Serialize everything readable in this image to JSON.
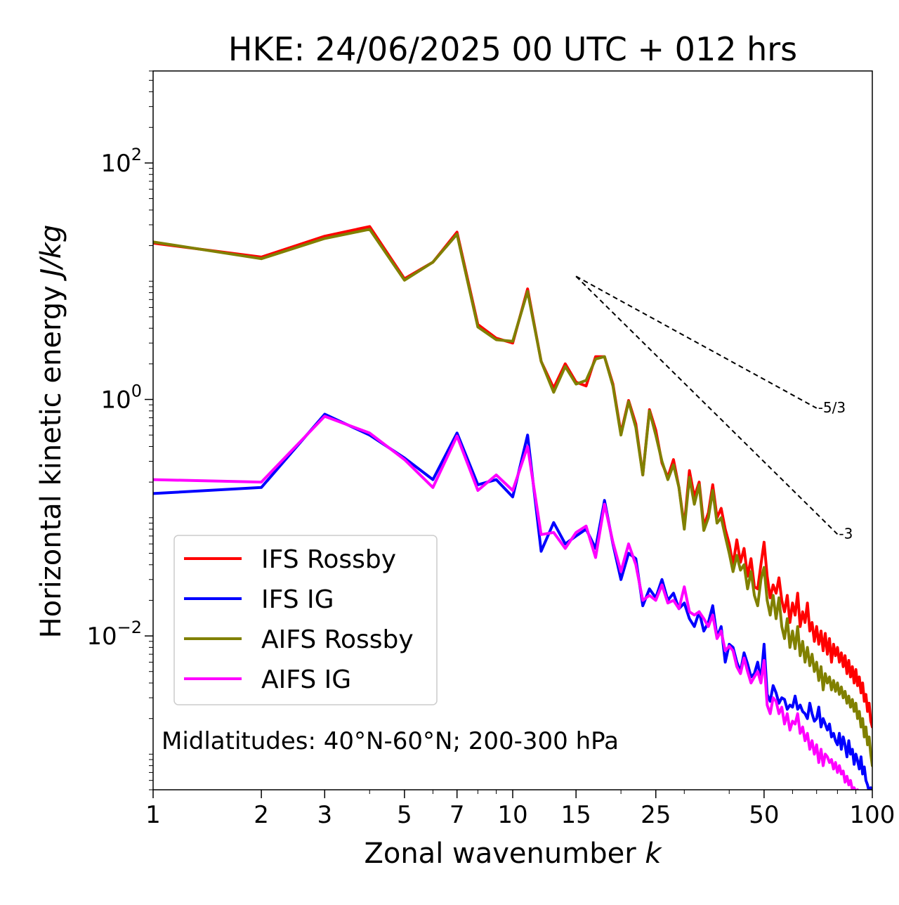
{
  "chart_data": {
    "type": "line",
    "title": "HKE: 24/06/2025 00 UTC + 012 hrs",
    "xlabel_text": "Zonal wavenumber ",
    "xlabel_var": "k",
    "ylabel_text": "Horizontal kinetic energy ",
    "ylabel_unit": "J/kg",
    "x_scale": "log",
    "y_scale": "log",
    "xlim": [
      1,
      100
    ],
    "ylim": [
      0.0005,
      600
    ],
    "x_ticks": [
      {
        "value": 1,
        "label": "1"
      },
      {
        "value": 2,
        "label": "2"
      },
      {
        "value": 3,
        "label": "3"
      },
      {
        "value": 5,
        "label": "5"
      },
      {
        "value": 7,
        "label": "7"
      },
      {
        "value": 10,
        "label": "10"
      },
      {
        "value": 15,
        "label": "15"
      },
      {
        "value": 25,
        "label": "25"
      },
      {
        "value": 50,
        "label": "50"
      },
      {
        "value": 100,
        "label": "100"
      }
    ],
    "y_ticks": [
      {
        "value": 100,
        "base": "10",
        "exp": "2"
      },
      {
        "value": 1,
        "base": "10",
        "exp": "0"
      },
      {
        "value": 0.01,
        "base": "10",
        "exp": "−2"
      }
    ],
    "grid": false,
    "legend_placement": "lower-left",
    "annotation": "Midlatitudes: 40°N-60°N; 200-300 hPa",
    "reference_slopes": [
      {
        "label": "-5/3",
        "exponent": -1.6667,
        "x_start": 15,
        "y_start": 11,
        "x_end": 70
      },
      {
        "label": "-3",
        "exponent": -3,
        "x_start": 15,
        "y_start": 11,
        "x_end": 80
      }
    ],
    "series": [
      {
        "name": "IFS Rossby",
        "color": "#ff0000",
        "x": [
          1,
          2,
          3,
          4,
          5,
          6,
          7,
          8,
          9,
          10,
          11,
          12,
          13,
          14,
          15,
          16,
          17,
          18,
          19,
          20,
          21,
          22,
          23,
          24,
          25,
          26,
          27,
          28,
          29,
          30,
          31,
          32,
          33,
          34,
          35,
          36,
          37,
          38,
          39,
          40,
          41,
          42,
          43,
          44,
          45,
          46,
          47,
          48,
          49,
          50,
          51,
          52,
          53,
          54,
          55,
          56,
          57,
          58,
          59,
          60,
          61,
          62,
          63,
          64,
          65,
          66,
          67,
          68,
          69,
          70,
          71,
          72,
          73,
          74,
          75,
          76,
          77,
          78,
          79,
          80,
          81,
          82,
          83,
          84,
          85,
          86,
          87,
          88,
          89,
          90,
          91,
          92,
          93,
          94,
          95,
          96,
          97,
          98,
          99,
          100
        ],
        "y": [
          21,
          16,
          24,
          29,
          10.5,
          14.5,
          26,
          4.3,
          3.3,
          3.0,
          8.6,
          2.1,
          1.25,
          2.0,
          1.4,
          1.3,
          2.3,
          2.3,
          1.35,
          0.52,
          0.98,
          0.62,
          0.23,
          0.82,
          0.55,
          0.29,
          0.22,
          0.31,
          0.18,
          0.085,
          0.25,
          0.15,
          0.2,
          0.085,
          0.11,
          0.19,
          0.1,
          0.12,
          0.08,
          0.06,
          0.04,
          0.065,
          0.042,
          0.055,
          0.032,
          0.045,
          0.026,
          0.025,
          0.04,
          0.062,
          0.032,
          0.021,
          0.027,
          0.023,
          0.031,
          0.02,
          0.016,
          0.022,
          0.013,
          0.019,
          0.015,
          0.023,
          0.012,
          0.016,
          0.013,
          0.019,
          0.011,
          0.013,
          0.009,
          0.012,
          0.0085,
          0.011,
          0.0075,
          0.0105,
          0.007,
          0.0095,
          0.006,
          0.0085,
          0.0068,
          0.008,
          0.006,
          0.0072,
          0.0055,
          0.0068,
          0.0048,
          0.0062,
          0.0045,
          0.0055,
          0.004,
          0.0052,
          0.0038,
          0.0045,
          0.0033,
          0.004,
          0.0028,
          0.0032,
          0.0023,
          0.0027,
          0.0019,
          0.0017
        ]
      },
      {
        "name": "IFS IG",
        "color": "#0000ff",
        "x": [
          1,
          2,
          3,
          4,
          5,
          6,
          7,
          8,
          9,
          10,
          11,
          12,
          13,
          14,
          15,
          16,
          17,
          18,
          19,
          20,
          21,
          22,
          23,
          24,
          25,
          26,
          27,
          28,
          29,
          30,
          31,
          32,
          33,
          34,
          35,
          36,
          37,
          38,
          39,
          40,
          41,
          42,
          43,
          44,
          45,
          46,
          47,
          48,
          49,
          50,
          51,
          52,
          53,
          54,
          55,
          56,
          57,
          58,
          59,
          60,
          61,
          62,
          63,
          64,
          65,
          66,
          67,
          68,
          69,
          70,
          71,
          72,
          73,
          74,
          75,
          76,
          77,
          78,
          79,
          80,
          81,
          82,
          83,
          84,
          85,
          86,
          87,
          88,
          89,
          90,
          91,
          92,
          93,
          94,
          95,
          96,
          97,
          98,
          99,
          100
        ],
        "y": [
          0.16,
          0.18,
          0.75,
          0.5,
          0.32,
          0.21,
          0.52,
          0.19,
          0.21,
          0.15,
          0.5,
          0.052,
          0.091,
          0.06,
          0.07,
          0.08,
          0.055,
          0.14,
          0.06,
          0.03,
          0.05,
          0.045,
          0.018,
          0.025,
          0.021,
          0.03,
          0.02,
          0.023,
          0.017,
          0.019,
          0.014,
          0.012,
          0.016,
          0.011,
          0.013,
          0.018,
          0.0098,
          0.012,
          0.006,
          0.0085,
          0.008,
          0.006,
          0.005,
          0.0072,
          0.0058,
          0.0045,
          0.0048,
          0.006,
          0.0042,
          0.0085,
          0.0032,
          0.0028,
          0.0038,
          0.0033,
          0.0027,
          0.003,
          0.0029,
          0.0024,
          0.0026,
          0.0025,
          0.0031,
          0.0024,
          0.0026,
          0.0023,
          0.0022,
          0.002,
          0.0027,
          0.0022,
          0.0019,
          0.002,
          0.0025,
          0.0017,
          0.002,
          0.0018,
          0.0016,
          0.0018,
          0.0014,
          0.0015,
          0.0013,
          0.0012,
          0.0015,
          0.0011,
          0.0014,
          0.0012,
          0.00095,
          0.0013,
          0.001,
          0.0011,
          0.00082,
          0.001,
          0.00088,
          0.00075,
          0.00095,
          0.00068,
          0.00078,
          0.0006,
          0.00055,
          0.00048,
          0.00052,
          0.00045
        ]
      },
      {
        "name": "AIFS Rossby",
        "color": "#808000",
        "x": [
          1,
          2,
          3,
          4,
          5,
          6,
          7,
          8,
          9,
          10,
          11,
          12,
          13,
          14,
          15,
          16,
          17,
          18,
          19,
          20,
          21,
          22,
          23,
          24,
          25,
          26,
          27,
          28,
          29,
          30,
          31,
          32,
          33,
          34,
          35,
          36,
          37,
          38,
          39,
          40,
          41,
          42,
          43,
          44,
          45,
          46,
          47,
          48,
          49,
          50,
          51,
          52,
          53,
          54,
          55,
          56,
          57,
          58,
          59,
          60,
          61,
          62,
          63,
          64,
          65,
          66,
          67,
          68,
          69,
          70,
          71,
          72,
          73,
          74,
          75,
          76,
          77,
          78,
          79,
          80,
          81,
          82,
          83,
          84,
          85,
          86,
          87,
          88,
          89,
          90,
          91,
          92,
          93,
          94,
          95,
          96,
          97,
          98,
          99,
          100
        ],
        "y": [
          21.5,
          15.5,
          23,
          27.5,
          10.2,
          14.5,
          25,
          4.1,
          3.2,
          3.1,
          8.2,
          2.1,
          1.15,
          1.9,
          1.35,
          1.45,
          2.2,
          2.3,
          1.3,
          0.5,
          0.96,
          0.58,
          0.23,
          0.8,
          0.5,
          0.3,
          0.21,
          0.28,
          0.18,
          0.08,
          0.22,
          0.13,
          0.19,
          0.078,
          0.1,
          0.17,
          0.09,
          0.1,
          0.07,
          0.05,
          0.035,
          0.048,
          0.036,
          0.04,
          0.025,
          0.035,
          0.022,
          0.018,
          0.03,
          0.038,
          0.02,
          0.015,
          0.022,
          0.014,
          0.021,
          0.012,
          0.0095,
          0.014,
          0.008,
          0.011,
          0.0078,
          0.012,
          0.0068,
          0.009,
          0.006,
          0.008,
          0.0056,
          0.007,
          0.005,
          0.006,
          0.0042,
          0.0055,
          0.0035,
          0.0048,
          0.004,
          0.0045,
          0.0035,
          0.0042,
          0.0034,
          0.004,
          0.0032,
          0.0037,
          0.003,
          0.0034,
          0.0027,
          0.0031,
          0.0025,
          0.0029,
          0.0023,
          0.0027,
          0.002,
          0.0023,
          0.0017,
          0.002,
          0.0014,
          0.0017,
          0.0012,
          0.0014,
          0.001,
          0.0008
        ]
      },
      {
        "name": "AIFS IG",
        "color": "#ff00ff",
        "x": [
          1,
          2,
          3,
          4,
          5,
          6,
          7,
          8,
          9,
          10,
          11,
          12,
          13,
          14,
          15,
          16,
          17,
          18,
          19,
          20,
          21,
          22,
          23,
          24,
          25,
          26,
          27,
          28,
          29,
          30,
          31,
          32,
          33,
          34,
          35,
          36,
          37,
          38,
          39,
          40,
          41,
          42,
          43,
          44,
          45,
          46,
          47,
          48,
          49,
          50,
          51,
          52,
          53,
          54,
          55,
          56,
          57,
          58,
          59,
          60,
          61,
          62,
          63,
          64,
          65,
          66,
          67,
          68,
          69,
          70,
          71,
          72,
          73,
          74,
          75,
          76,
          77,
          78,
          79,
          80,
          81,
          82,
          83,
          84,
          85,
          86,
          87,
          88,
          89,
          90,
          91,
          92,
          93,
          94,
          95,
          96,
          97,
          98,
          99,
          100
        ],
        "y": [
          0.21,
          0.2,
          0.72,
          0.52,
          0.31,
          0.18,
          0.49,
          0.17,
          0.23,
          0.17,
          0.4,
          0.072,
          0.075,
          0.055,
          0.075,
          0.085,
          0.046,
          0.13,
          0.062,
          0.035,
          0.06,
          0.04,
          0.02,
          0.022,
          0.02,
          0.027,
          0.019,
          0.02,
          0.017,
          0.026,
          0.016,
          0.015,
          0.016,
          0.014,
          0.012,
          0.015,
          0.0095,
          0.011,
          0.0075,
          0.0082,
          0.0075,
          0.0055,
          0.0048,
          0.0065,
          0.005,
          0.004,
          0.0045,
          0.005,
          0.004,
          0.0062,
          0.0026,
          0.0022,
          0.003,
          0.0028,
          0.0022,
          0.0025,
          0.0018,
          0.0022,
          0.0016,
          0.0019,
          0.0018,
          0.0022,
          0.0015,
          0.0017,
          0.0013,
          0.0015,
          0.0011,
          0.0013,
          0.001,
          0.0012,
          0.00085,
          0.0011,
          0.0008,
          0.001,
          0.00095,
          0.00085,
          0.0009,
          0.00075,
          0.00085,
          0.0007,
          0.0008,
          0.00068,
          0.00072,
          0.00058,
          0.00065,
          0.00055,
          0.0006,
          0.0005,
          0.00052,
          0.00048,
          0.0005,
          0.00045,
          0.00048,
          0.00042,
          0.00045,
          0.0004,
          0.00042,
          0.00038,
          0.0004,
          0.00036
        ]
      }
    ]
  }
}
